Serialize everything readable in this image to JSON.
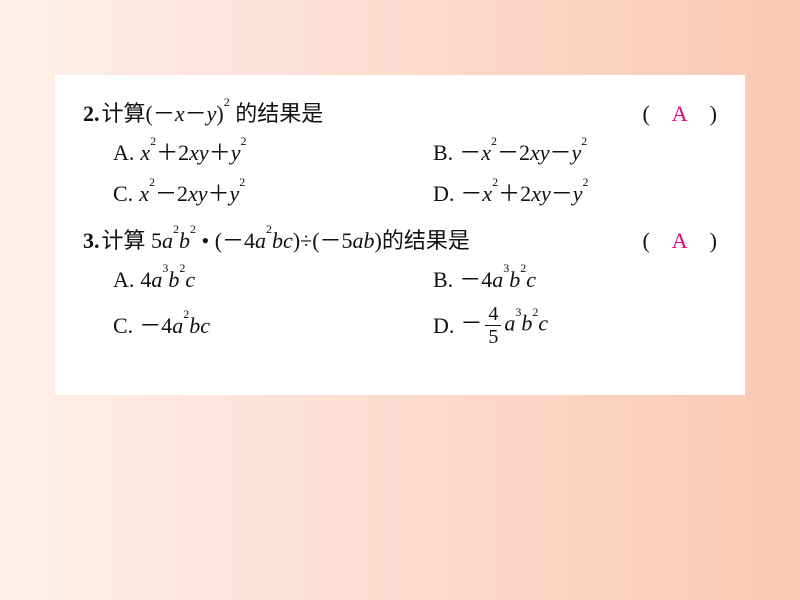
{
  "colors": {
    "answer": "#e6007e",
    "text": "#111111",
    "card_bg": "#ffffff",
    "page_grad_from": "#fef0ea",
    "page_grad_to": "#fac8b4"
  },
  "typography": {
    "body_fontsize": 22,
    "font_family": "SimSun"
  },
  "questions": [
    {
      "num": "2.",
      "stem_prefix": "计算",
      "stem_suffix": " 的结果是",
      "paren_open": "(　",
      "answer": "A",
      "paren_close": "　)",
      "options": {
        "A": {
          "label": "A."
        },
        "B": {
          "label": "B."
        },
        "C": {
          "label": "C."
        },
        "D": {
          "label": "D."
        }
      }
    },
    {
      "num": "3.",
      "stem_prefix": "计算 ",
      "stem_suffix": "的结果是",
      "paren_open": "(　",
      "answer": "A",
      "paren_close": "　)",
      "options": {
        "A": {
          "label": "A."
        },
        "B": {
          "label": "B."
        },
        "C": {
          "label": "C."
        },
        "D": {
          "label": "D."
        }
      }
    }
  ]
}
